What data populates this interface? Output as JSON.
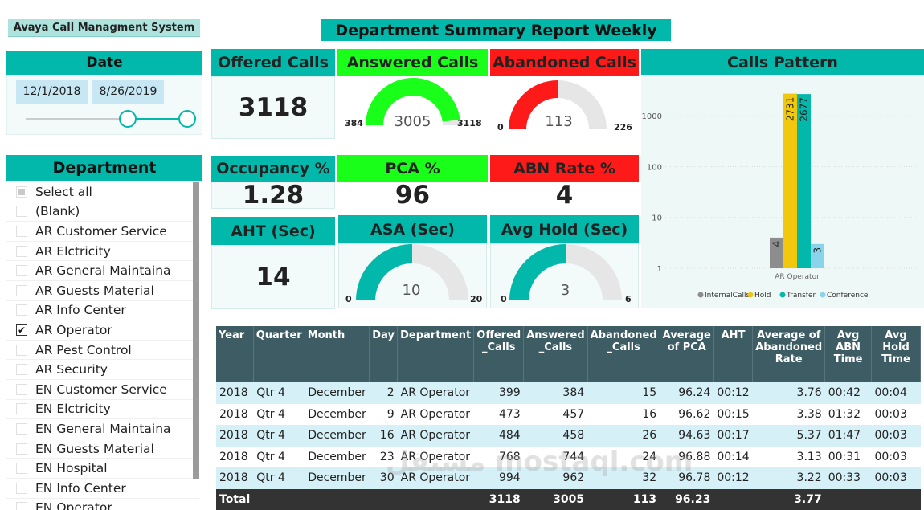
{
  "app_title": "Avaya Call Managment System",
  "report_title": "Department Summary Report Weekly",
  "date_filter": {
    "title": "Date",
    "start": "12/1/2018",
    "end": "8/26/2019"
  },
  "department_filter": {
    "title": "Department",
    "items": [
      {
        "label": "Select all",
        "state": "partial"
      },
      {
        "label": "(Blank)",
        "state": "unchecked"
      },
      {
        "label": "AR Customer Service",
        "state": "unchecked"
      },
      {
        "label": "AR Elctricity",
        "state": "unchecked"
      },
      {
        "label": "AR General Maintaina",
        "state": "unchecked"
      },
      {
        "label": "AR Guests Material",
        "state": "unchecked"
      },
      {
        "label": "AR Info Center",
        "state": "unchecked"
      },
      {
        "label": "AR Operator",
        "state": "checked"
      },
      {
        "label": "AR Pest Control",
        "state": "unchecked"
      },
      {
        "label": "AR Security",
        "state": "unchecked"
      },
      {
        "label": "EN Customer Service",
        "state": "unchecked"
      },
      {
        "label": "EN Elctricity",
        "state": "unchecked"
      },
      {
        "label": "EN General Maintaina",
        "state": "unchecked"
      },
      {
        "label": "EN Guests Material",
        "state": "unchecked"
      },
      {
        "label": "EN Hospital",
        "state": "unchecked"
      },
      {
        "label": "EN Info Center",
        "state": "unchecked"
      },
      {
        "label": "EN Operator",
        "state": "unchecked"
      }
    ]
  },
  "kpis": {
    "offered": {
      "title": "Offered Calls",
      "value": "3118"
    },
    "answered": {
      "title": "Answered Calls",
      "value": "3005",
      "min": "384",
      "max": "3118",
      "fraction": 0.962
    },
    "abandoned": {
      "title": "Abandoned Calls",
      "value": "113",
      "min": "0",
      "max": "226",
      "fraction": 0.5
    },
    "occupancy": {
      "title": "Occupancy %",
      "value": "1.28"
    },
    "pca": {
      "title": "PCA %",
      "value": "96"
    },
    "abn_rate": {
      "title": "ABN Rate %",
      "value": "4"
    },
    "aht": {
      "title": "AHT  (Sec)",
      "value": "14"
    },
    "asa": {
      "title": "ASA (Sec)",
      "value": "10",
      "min": "0",
      "max": "20",
      "fraction": 0.5
    },
    "avg_hold": {
      "title": "Avg Hold  (Sec)",
      "value": "3",
      "min": "0",
      "max": "6",
      "fraction": 0.5
    }
  },
  "colors": {
    "teal": "#01b8aa",
    "green": "#1aff1a",
    "red": "#ff1a1a",
    "gauge_bg": "#e6e6e6",
    "internal": "#8d8d8d",
    "hold": "#f2c80f",
    "transfer": "#01b8aa",
    "conference": "#8ad4eb"
  },
  "chart_data": {
    "type": "bar",
    "title": "Calls Pattern",
    "scale": "log",
    "yticks": [
      "1",
      "10",
      "100",
      "1000"
    ],
    "ylim": [
      1,
      3000
    ],
    "categories": [
      "AR Operator"
    ],
    "series": [
      {
        "name": "InternalCalls",
        "values": [
          4
        ]
      },
      {
        "name": "Hold",
        "values": [
          2731
        ]
      },
      {
        "name": "Transfer",
        "values": [
          2677
        ]
      },
      {
        "name": "Conference",
        "values": [
          3
        ]
      }
    ],
    "legend_position": "bottom"
  },
  "table": {
    "columns": [
      "Year",
      "Quarter",
      "Month",
      "Day",
      "Department",
      "Offered _Calls",
      "Answered _Calls",
      "Abandoned _Calls",
      "Average of PCA",
      "AHT",
      "Average of Abandoned Rate",
      "Avg ABN Time",
      "Avg Hold Time"
    ],
    "rows": [
      [
        "2018",
        "Qtr 4",
        "December",
        "2",
        "AR Operator",
        "399",
        "384",
        "15",
        "96.24",
        "00:12",
        "3.76",
        "00:42",
        "00:04"
      ],
      [
        "2018",
        "Qtr 4",
        "December",
        "9",
        "AR Operator",
        "473",
        "457",
        "16",
        "96.62",
        "00:15",
        "3.38",
        "01:32",
        "00:03"
      ],
      [
        "2018",
        "Qtr 4",
        "December",
        "16",
        "AR Operator",
        "484",
        "458",
        "26",
        "94.63",
        "00:17",
        "5.37",
        "01:47",
        "00:03"
      ],
      [
        "2018",
        "Qtr 4",
        "December",
        "23",
        "AR Operator",
        "768",
        "744",
        "24",
        "96.88",
        "00:14",
        "3.13",
        "00:31",
        "00:03"
      ],
      [
        "2018",
        "Qtr 4",
        "December",
        "30",
        "AR Operator",
        "994",
        "962",
        "32",
        "96.78",
        "00:12",
        "3.22",
        "00:33",
        "00:03"
      ]
    ],
    "total": [
      "Total",
      "",
      "",
      "",
      "",
      "3118",
      "3005",
      "113",
      "96.23",
      "",
      "3.77",
      "",
      ""
    ]
  },
  "watermark": "مستقل mostaql.com"
}
